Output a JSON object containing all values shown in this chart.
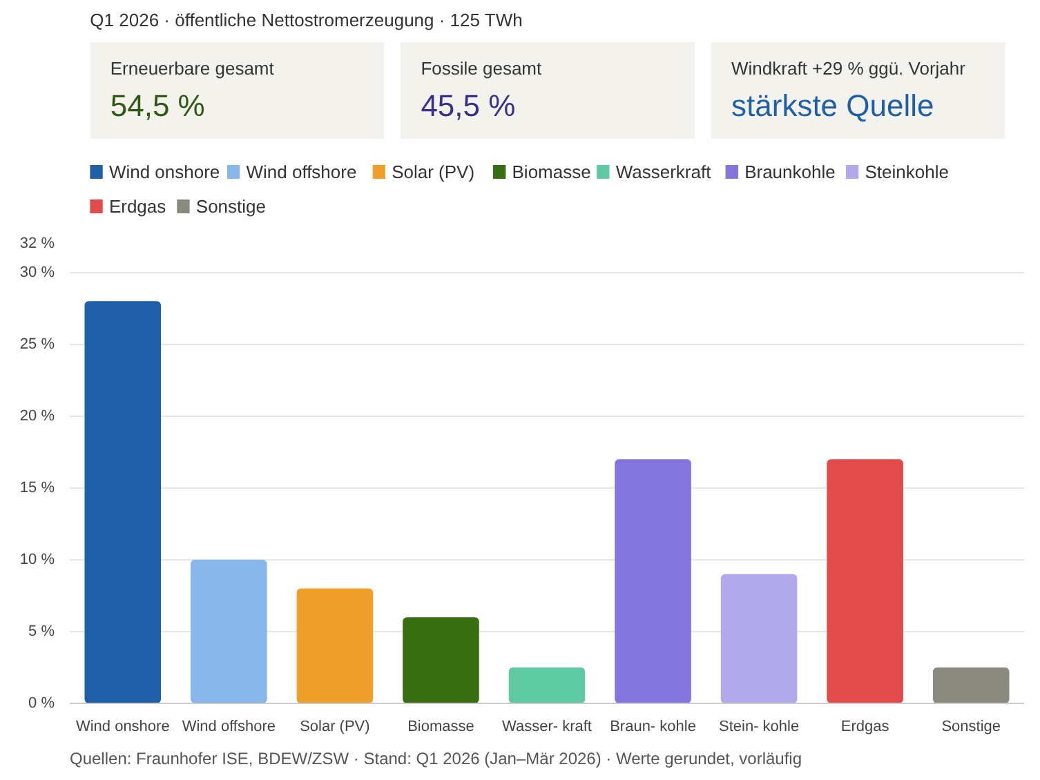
{
  "chart_data": [
    {
      "type": "other",
      "title": "Q1 2026 · öffentliche Nettostromerzeugung · 125 TWh",
      "annotations": [
        "Erneuerbare gesamt",
        "54,5 %",
        "Fossile gesamt",
        "45,5 %",
        "Windkraft +29 % ggü. Vorjahr",
        "stärkste Quelle"
      ]
    },
    {
      "type": "bar",
      "categories": [
        "Wind onshore",
        "Wind offshore",
        "Solar (PV)",
        "Biomasse",
        "Wasser- kraft",
        "Braun- kohle",
        "Stein- kohle",
        "Erdgas",
        "Sonstige"
      ],
      "series": [
        {
          "name": "Wind onshore",
          "color": "#1f5fa8",
          "values": [
            28,
            null,
            null,
            null,
            null,
            null,
            null,
            null,
            null
          ]
        },
        {
          "name": "Wind offshore",
          "color": "#86b6ea",
          "values": [
            null,
            10,
            null,
            null,
            null,
            null,
            null,
            null,
            null
          ]
        },
        {
          "name": "Solar (PV)",
          "color": "#ee9f2c",
          "values": [
            null,
            null,
            8,
            null,
            null,
            null,
            null,
            null,
            null
          ]
        },
        {
          "name": "Biomasse",
          "color": "#386d12",
          "values": [
            null,
            null,
            null,
            6,
            null,
            null,
            null,
            null,
            null
          ]
        },
        {
          "name": "Wasserkraft",
          "color": "#5ecaa3",
          "values": [
            null,
            null,
            null,
            null,
            2.5,
            null,
            null,
            null,
            null
          ]
        },
        {
          "name": "Braunkohle",
          "color": "#8474de",
          "values": [
            null,
            null,
            null,
            null,
            null,
            17,
            null,
            null,
            null
          ]
        },
        {
          "name": "Steinkohle",
          "color": "#b2a8ec",
          "values": [
            null,
            null,
            null,
            null,
            null,
            null,
            9,
            null,
            null
          ]
        },
        {
          "name": "Erdgas",
          "color": "#e24b4b",
          "values": [
            null,
            null,
            null,
            null,
            null,
            null,
            null,
            17,
            null
          ]
        },
        {
          "name": "Sonstige",
          "color": "#8a8a80",
          "values": [
            null,
            null,
            null,
            null,
            null,
            null,
            null,
            null,
            2.5
          ]
        }
      ],
      "ylim": [
        0,
        32
      ],
      "yticks": [
        {
          "value": 0,
          "label": "0 %"
        },
        {
          "value": 5,
          "label": "5 %"
        },
        {
          "value": 10,
          "label": "10 %"
        },
        {
          "value": 15,
          "label": "15 %"
        },
        {
          "value": 20,
          "label": "20 %"
        },
        {
          "value": 25,
          "label": "25 %"
        },
        {
          "value": 30,
          "label": "30 %"
        },
        {
          "value": 32,
          "label": "32 %"
        }
      ],
      "grid": "y",
      "legend": "top",
      "annotations": [
        "Quellen: Fraunhofer ISE, BDEW/ZSW · Stand: Q1 2026 (Jan–Mär 2026) · Werte gerundet, vorläufig"
      ]
    }
  ]
}
